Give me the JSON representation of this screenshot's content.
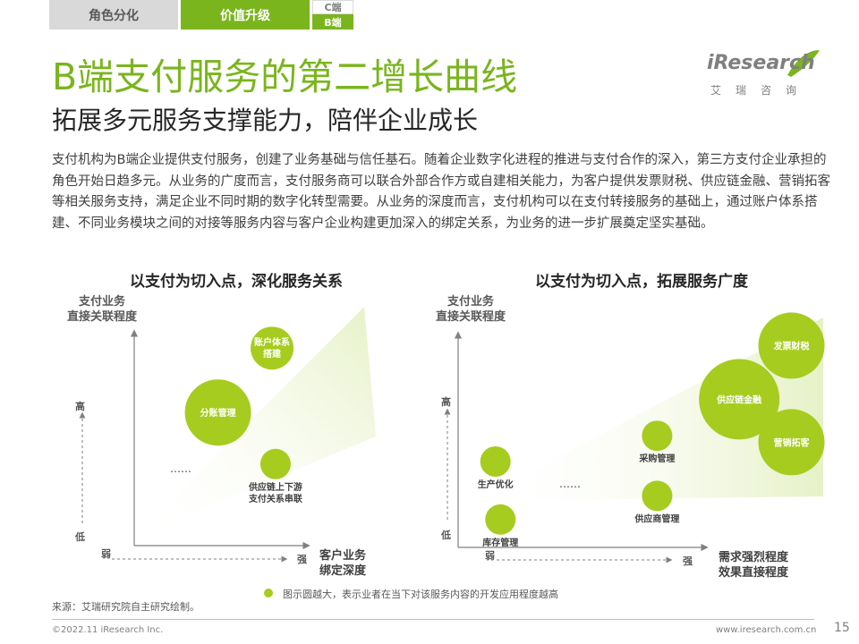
{
  "nav": {
    "tab1": "角色分化",
    "tab2": "价值升级",
    "tab3_top": "C端",
    "tab3_bottom": "B端"
  },
  "title": "B端支付服务的第二增长曲线",
  "subtitle": "拓展多元服务支撑能力，陪伴企业成长",
  "body": "支付机构为B端企业提供支付服务，创建了业务基础与信任基石。随着企业数字化进程的推进与支付合作的深入，第三方支付企业承担的角色开始日趋多元。从业务的广度而言，支付服务商可以联合外部合作方或自建相关能力，为客户提供发票财税、供应链金融、营销拓客等相关服务支持，满足企业不同时期的数字化转型需要。从业务的深度而言，支付机构可以在支付转接服务的基础上，通过账户体系搭建、不同业务模块之间的对接等服务内容与客户企业构建更加深入的绑定关系，为业务的进一步扩展奠定坚实基础。",
  "logo": {
    "word": "iResearch",
    "cn": "艾瑞咨询"
  },
  "colors": {
    "accent": "#7ab51d",
    "bubble": "#a6cc1f",
    "wedge_light": "#f2f8df"
  },
  "chart_data": [
    {
      "type": "bubble",
      "title": "以支付为切入点，深化服务关系",
      "ylabel": [
        "支付业务",
        "直接关联程度"
      ],
      "xlabel": [
        "客户业务",
        "绑定深度"
      ],
      "y_ticks": {
        "high": "高",
        "low": "低"
      },
      "x_ticks": {
        "low": "弱",
        "high": "强"
      },
      "ellipsis": "……",
      "points": [
        {
          "label": "分账管理",
          "x": 0.48,
          "y": 0.62,
          "size": "large"
        },
        {
          "label": "账户体系\n搭建",
          "x": 0.79,
          "y": 0.92,
          "size": "medium"
        },
        {
          "label": "供应链上下游\n支付关系串联",
          "x": 0.81,
          "y": 0.38,
          "size": "small"
        }
      ]
    },
    {
      "type": "bubble",
      "title": "以支付为切入点，拓展服务广度",
      "ylabel": [
        "支付业务",
        "直接关联程度"
      ],
      "xlabel": [
        "需求强烈程度",
        "效果直接程度"
      ],
      "y_ticks": {
        "high": "高",
        "low": "低"
      },
      "x_ticks": {
        "low": "弱",
        "high": "强"
      },
      "ellipsis": "……",
      "points": [
        {
          "label": "生产优化",
          "x": 0.15,
          "y": 0.4,
          "size": "small"
        },
        {
          "label": "库存管理",
          "x": 0.17,
          "y": 0.13,
          "size": "small"
        },
        {
          "label": "采购管理",
          "x": 0.8,
          "y": 0.52,
          "size": "small"
        },
        {
          "label": "供应商管理",
          "x": 0.8,
          "y": 0.24,
          "size": "small"
        },
        {
          "label": "供应链金融",
          "x": 1.13,
          "y": 0.69,
          "size": "xlarge"
        },
        {
          "label": "发票财税",
          "x": 1.34,
          "y": 0.94,
          "size": "large"
        },
        {
          "label": "营销拓客",
          "x": 1.34,
          "y": 0.49,
          "size": "large"
        }
      ]
    }
  ],
  "legend": "图示圆越大，表示业者在当下对该服务内容的开发应用程度越高",
  "source": "来源：艾瑞研究院自主研究绘制。",
  "footer": {
    "left": "©2022.11 iResearch Inc.",
    "url": "www.iresearch.com.cn",
    "page": "15"
  }
}
